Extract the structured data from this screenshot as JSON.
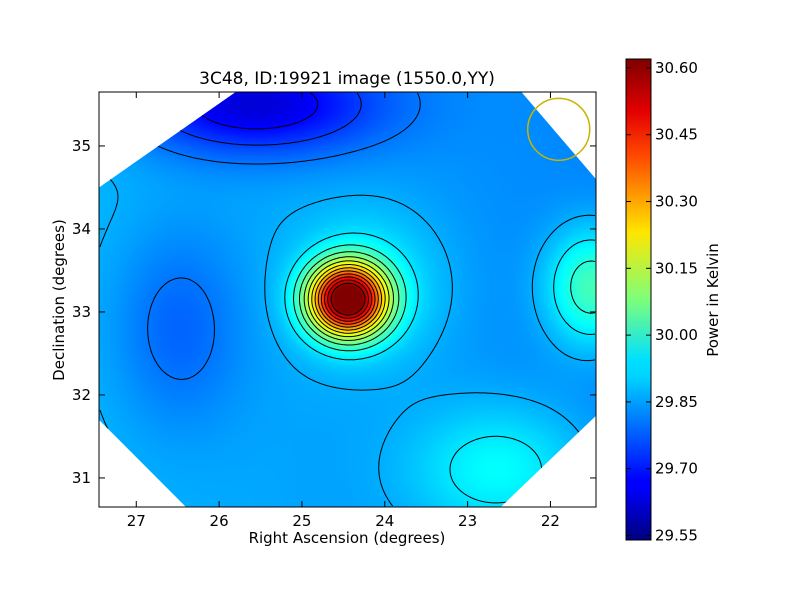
{
  "chart_data": {
    "type": "heatmap",
    "title": "3C48, ID:19921 image (1550.0,YY)",
    "xlabel": "Right Ascension (degrees)",
    "ylabel": "Declination (degrees)",
    "colorbar_label": "Power in Kelvin",
    "xlim": [
      27.45,
      21.45
    ],
    "ylim": [
      30.65,
      35.65
    ],
    "x_ticks": [
      27,
      26,
      25,
      24,
      23,
      22
    ],
    "y_ticks": [
      31,
      32,
      33,
      34,
      35
    ],
    "colorbar_range": [
      29.54,
      30.62
    ],
    "colorbar_ticks": [
      "29.55",
      "29.70",
      "29.85",
      "30.00",
      "30.15",
      "30.30",
      "30.45",
      "30.60"
    ],
    "colormap": "jet",
    "peak": {
      "ra": 24.45,
      "dec": 33.15,
      "value": 30.62
    },
    "secondary_peak": {
      "ra": 21.5,
      "dec": 33.3,
      "value": 30.1
    },
    "circle_marker": {
      "ra": 21.9,
      "dec": 35.2,
      "color": "#c8b400"
    },
    "contour_color": "#000000"
  }
}
